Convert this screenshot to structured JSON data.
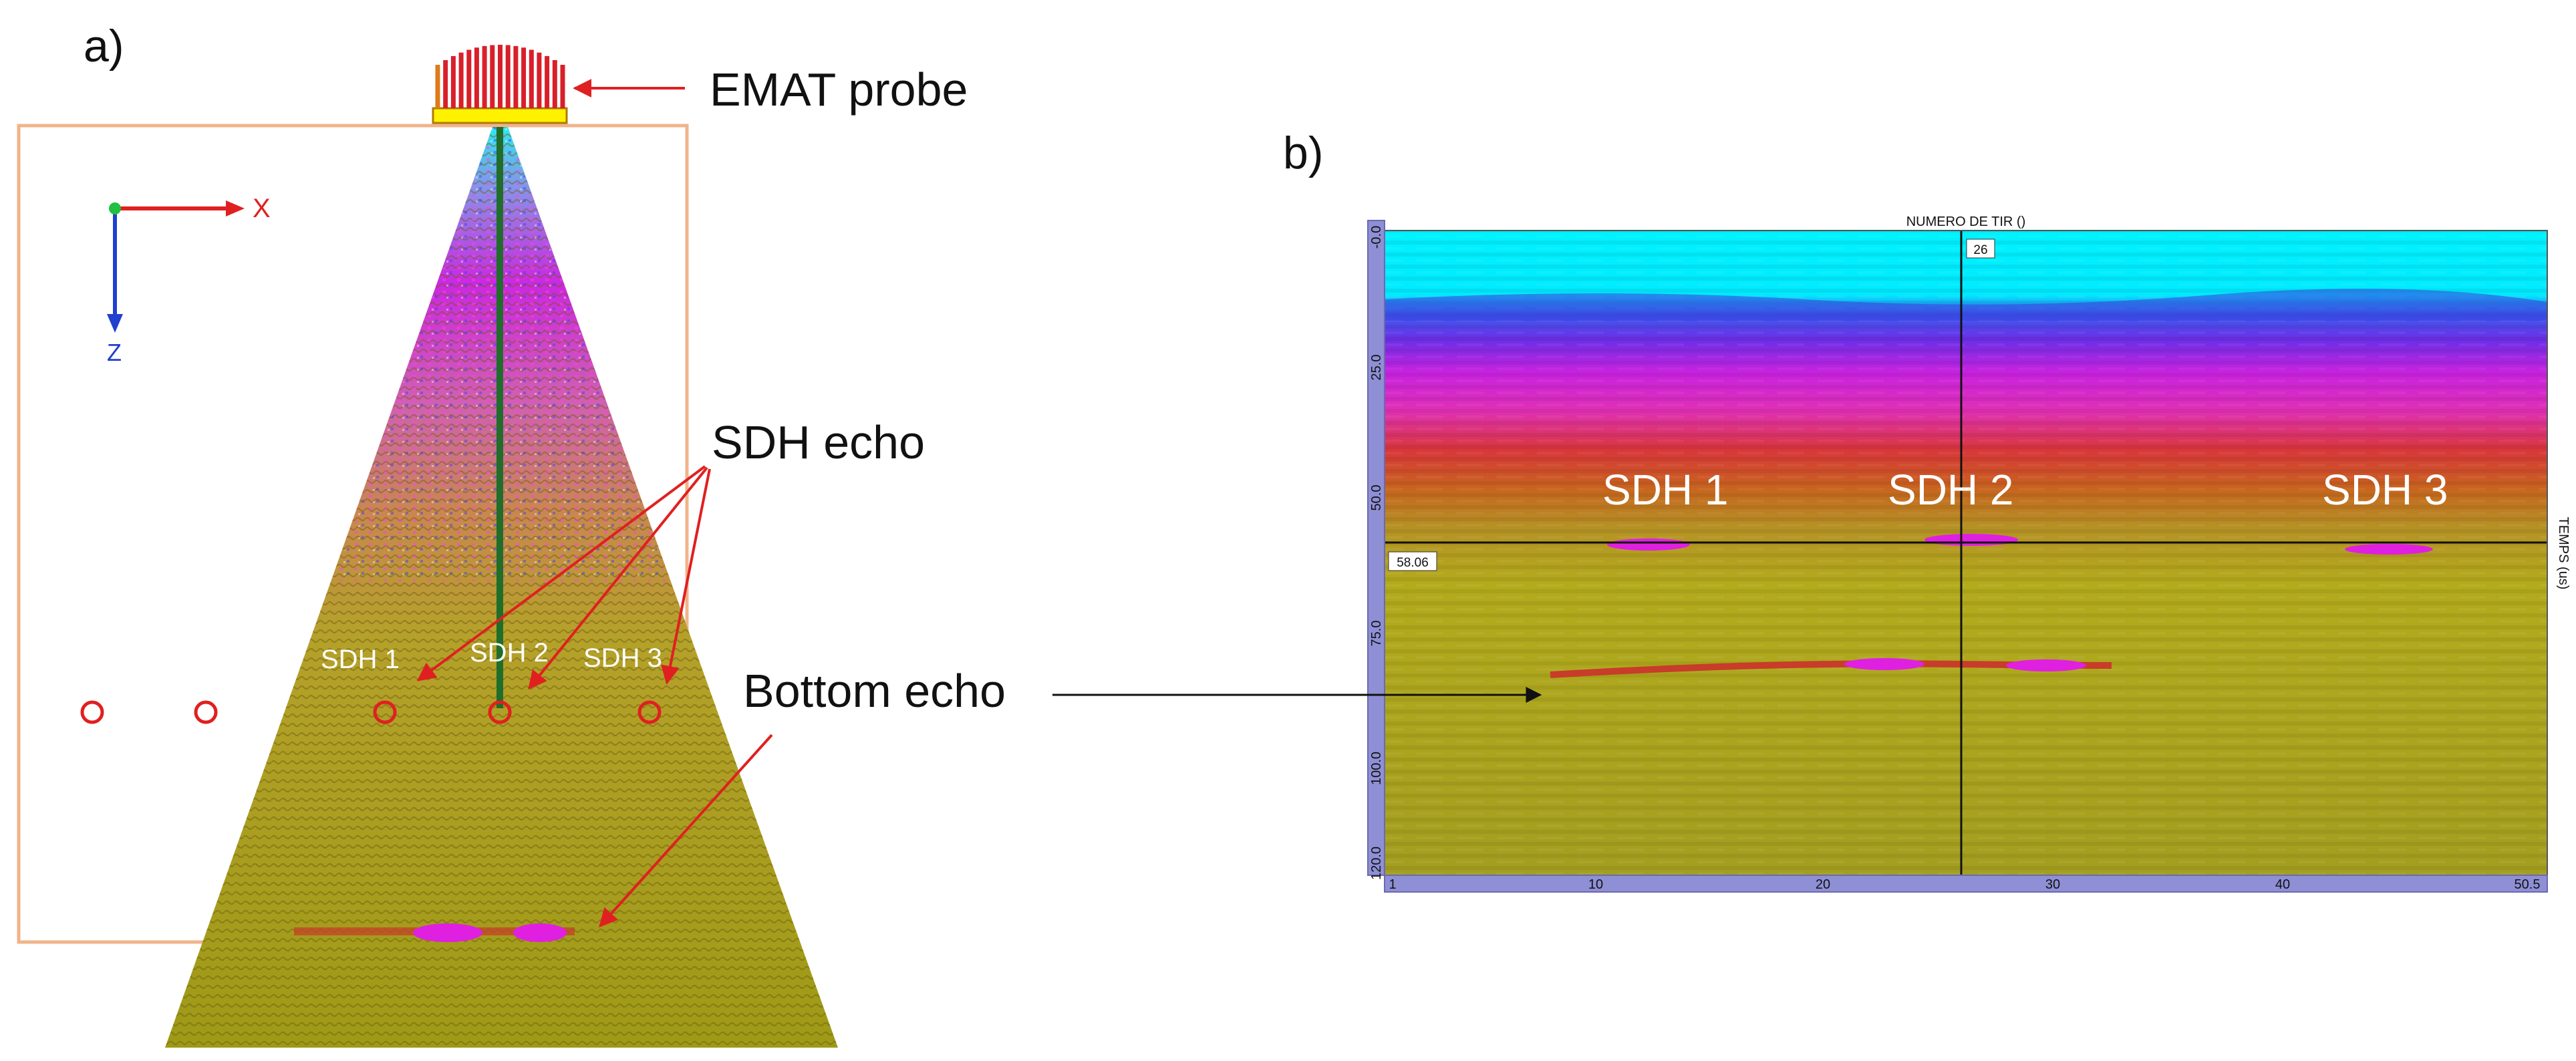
{
  "panel_a": {
    "label": "a)",
    "probe_label": "EMAT probe",
    "sdh_echo_label": "SDH echo",
    "bottom_echo_label": "Bottom echo",
    "axis_x": "X",
    "axis_z": "Z",
    "sdh_labels": [
      "SDH 1",
      "SDH 2",
      "SDH 3"
    ]
  },
  "panel_b": {
    "label": "b)",
    "top_axis_title": "NUMERO DE TIR ()",
    "right_axis_title": "TEMPS (us)",
    "cursor_x_value": "26",
    "cursor_y_value": "58.06",
    "sdh_labels": [
      "SDH 1",
      "SDH 2",
      "SDH 3"
    ],
    "x_ticks": [
      "1",
      "10",
      "20",
      "30",
      "40",
      "50.5"
    ],
    "y_ticks": [
      "-0.0",
      "25.0",
      "50.0",
      "75.0",
      "100.0",
      "120.0"
    ]
  },
  "colors": {
    "annotation_red": "#e02020",
    "water_cyan": "#00f0ff",
    "magenta": "#d21ee6",
    "olive": "#b3ad19",
    "axis_bar": "#8f8fd6",
    "box_orange": "#f0b48a"
  }
}
